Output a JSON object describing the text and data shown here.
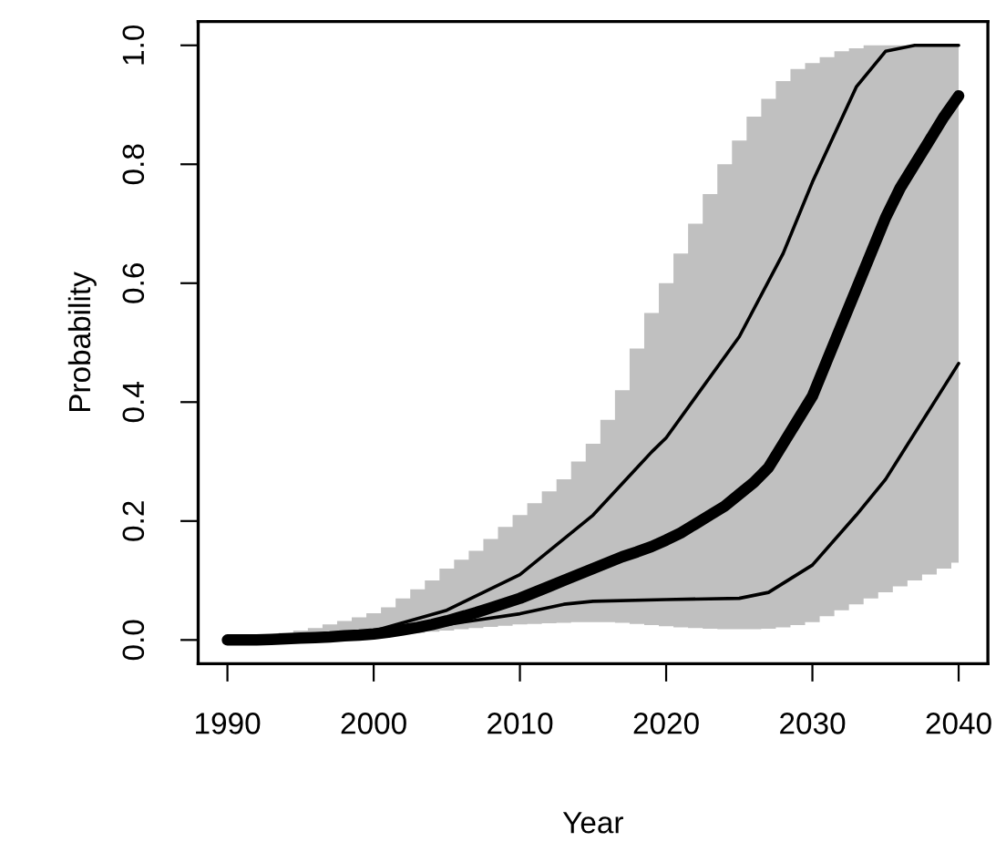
{
  "chart_data": {
    "type": "line",
    "xlabel": "Year",
    "ylabel": "Probability",
    "xlim": [
      1988,
      2042
    ],
    "ylim": [
      -0.04,
      1.04
    ],
    "xticks": [
      1990,
      2000,
      2010,
      2020,
      2030,
      2040
    ],
    "yticks": [
      {
        "value": 0,
        "label": "0.0"
      },
      {
        "value": 0.2,
        "label": "0.2"
      },
      {
        "value": 0.4,
        "label": "0.4"
      },
      {
        "value": 0.6,
        "label": "0.6"
      },
      {
        "value": 0.8,
        "label": "0.8"
      },
      {
        "value": 1,
        "label": "1.0"
      }
    ],
    "grid": false,
    "legend": false,
    "marker": "none",
    "line_style": "solid",
    "series": [
      {
        "color": "#000000",
        "x": [
          1990,
          1991,
          1992,
          1993,
          1994,
          1995,
          1996,
          1997,
          1998,
          1999,
          2000,
          2001,
          2002,
          2003,
          2004,
          2005,
          2006,
          2007,
          2008,
          2009,
          2010,
          2011,
          2012,
          2013,
          2014,
          2015,
          2016,
          2017,
          2018,
          2019,
          2020,
          2021,
          2022,
          2023,
          2024,
          2025,
          2026,
          2027,
          2028,
          2029,
          2030,
          2031,
          2032,
          2033,
          2034,
          2035,
          2036,
          2037,
          2038,
          2039,
          2040
        ],
        "values": [
          0,
          0,
          0,
          0.001,
          0.002,
          0.003,
          0.004,
          0.005,
          0.007,
          0.008,
          0.01,
          0.013,
          0.017,
          0.021,
          0.026,
          0.032,
          0.039,
          0.046,
          0.054,
          0.062,
          0.07,
          0.08,
          0.09,
          0.1,
          0.11,
          0.12,
          0.13,
          0.14,
          0.148,
          0.157,
          0.168,
          0.18,
          0.195,
          0.21,
          0.225,
          0.245,
          0.265,
          0.29,
          0.33,
          0.37,
          0.41,
          0.47,
          0.53,
          0.59,
          0.65,
          0.71,
          0.76,
          0.8,
          0.84,
          0.88,
          0.915
        ],
        "upper": [
          0.002,
          0.003,
          0.005,
          0.008,
          0.012,
          0.016,
          0.02,
          0.026,
          0.032,
          0.038,
          0.045,
          0.055,
          0.07,
          0.085,
          0.1,
          0.12,
          0.135,
          0.15,
          0.17,
          0.19,
          0.21,
          0.23,
          0.25,
          0.27,
          0.3,
          0.33,
          0.37,
          0.42,
          0.49,
          0.55,
          0.6,
          0.65,
          0.7,
          0.75,
          0.8,
          0.84,
          0.88,
          0.91,
          0.94,
          0.96,
          0.97,
          0.98,
          0.99,
          0.995,
          1,
          1,
          1,
          1,
          1,
          1,
          1
        ],
        "lower": [
          0,
          0,
          0,
          0,
          0,
          0.001,
          0.002,
          0.003,
          0.004,
          0.005,
          0.006,
          0.008,
          0.01,
          0.012,
          0.014,
          0.016,
          0.018,
          0.02,
          0.022,
          0.024,
          0.026,
          0.027,
          0.028,
          0.029,
          0.03,
          0.03,
          0.03,
          0.029,
          0.027,
          0.025,
          0.023,
          0.021,
          0.02,
          0.019,
          0.018,
          0.018,
          0.018,
          0.019,
          0.021,
          0.025,
          0.03,
          0.04,
          0.05,
          0.06,
          0.07,
          0.08,
          0.09,
          0.1,
          0.11,
          0.12,
          0.13
        ]
      },
      {
        "color": "#000000",
        "x": [
          1990,
          1995,
          2000,
          2005,
          2010,
          2015,
          2019,
          2020,
          2025,
          2028,
          2030,
          2033,
          2035,
          2037,
          2040
        ],
        "values": [
          0,
          0.003,
          0.015,
          0.05,
          0.11,
          0.21,
          0.316,
          0.34,
          0.51,
          0.65,
          0.77,
          0.93,
          0.99,
          1,
          1
        ]
      },
      {
        "color": "#000000",
        "x": [
          1990,
          1995,
          2000,
          2005,
          2010,
          2013,
          2015,
          2020,
          2025,
          2027,
          2030,
          2033,
          2035,
          2040
        ],
        "values": [
          0,
          0.002,
          0.008,
          0.026,
          0.044,
          0.06,
          0.065,
          0.068,
          0.07,
          0.08,
          0.126,
          0.21,
          0.27,
          0.465
        ]
      }
    ]
  }
}
